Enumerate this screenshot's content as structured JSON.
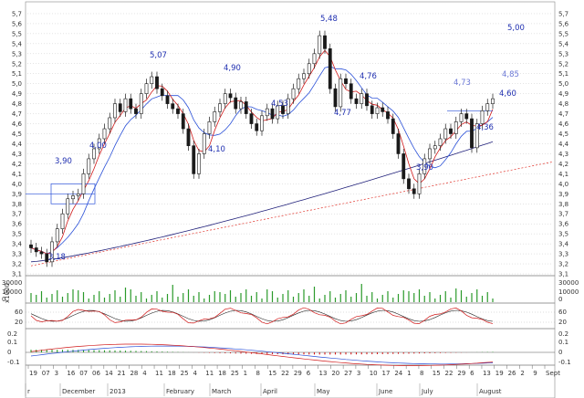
{
  "chart_data": [
    {
      "type": "candlestick",
      "title": "",
      "xlabel": "",
      "ylabel": "",
      "ylim": [
        3.1,
        5.8
      ],
      "y_ticks": [
        "3,1",
        "3,2",
        "3,3",
        "3,4",
        "3,5",
        "3,6",
        "3,7",
        "3,8",
        "3,9",
        "4,0",
        "4,1",
        "4,2",
        "4,3",
        "4,4",
        "4,5",
        "4,6",
        "4,7",
        "4,8",
        "4,9",
        "5,0",
        "5,1",
        "5,2",
        "5,3",
        "5,4",
        "5,5",
        "5,6",
        "5,7"
      ],
      "grid": "horizontal dotted",
      "x_day_labels": [
        "19",
        "07",
        "3",
        "16",
        "07",
        "06",
        "14",
        "21",
        "28",
        "4",
        "11",
        "18",
        "25",
        "4",
        "11",
        "18",
        "25",
        "1",
        "8",
        "15",
        "22",
        "29",
        "6",
        "13",
        "20",
        "27",
        "3",
        "10",
        "17",
        "24",
        "1",
        "8",
        "15",
        "22",
        "29",
        "6",
        "13",
        "19",
        "26",
        "2",
        "9",
        "Sept"
      ],
      "x_month_labels": [
        "r",
        "December",
        "2013",
        "February",
        "March",
        "April",
        "May",
        "June",
        "July",
        "August"
      ],
      "close_path": [
        3.36,
        3.32,
        3.3,
        3.22,
        3.42,
        3.55,
        3.7,
        3.85,
        3.88,
        3.9,
        4.1,
        4.25,
        4.35,
        4.45,
        4.55,
        4.66,
        4.8,
        4.72,
        4.85,
        4.75,
        4.7,
        4.9,
        5.0,
        5.07,
        4.95,
        4.88,
        4.8,
        4.75,
        4.7,
        4.55,
        4.38,
        4.1,
        4.3,
        4.5,
        4.62,
        4.72,
        4.8,
        4.9,
        4.86,
        4.75,
        4.82,
        4.7,
        4.6,
        4.53,
        4.68,
        4.75,
        4.65,
        4.78,
        4.7,
        4.85,
        4.95,
        5.05,
        5.1,
        5.2,
        5.3,
        5.48,
        5.35,
        4.95,
        4.77,
        5.05,
        5.0,
        4.85,
        4.8,
        4.9,
        4.78,
        4.7,
        4.76,
        4.72,
        4.65,
        4.5,
        4.3,
        4.05,
        3.95,
        3.9,
        4.1,
        4.25,
        4.35,
        4.38,
        4.45,
        4.55,
        4.5,
        4.62,
        4.7,
        4.65,
        4.36,
        4.6,
        4.73,
        4.8,
        4.85
      ],
      "levels": [
        {
          "label": "5,48",
          "value": 5.48
        },
        {
          "label": "5,07",
          "value": 5.07
        },
        {
          "label": "5,00",
          "value": 5.0
        },
        {
          "label": "4,90",
          "value": 4.9
        },
        {
          "label": "4,85",
          "value": 4.85
        },
        {
          "label": "4,77",
          "value": 4.77
        },
        {
          "label": "4,76",
          "value": 4.76
        },
        {
          "label": "4,73",
          "value": 4.73
        },
        {
          "label": "4,60",
          "value": 4.6
        },
        {
          "label": "4,53",
          "value": 4.53
        },
        {
          "label": "4,36",
          "value": 4.36
        },
        {
          "label": "4,10",
          "value": 4.1
        },
        {
          "label": "4,00",
          "value": 4.0
        },
        {
          "label": "3,90",
          "value": 3.9
        },
        {
          "label": "3,18",
          "value": 3.18
        }
      ],
      "overlays": [
        "short moving average (red)",
        "medium moving average (blue)",
        "long moving average (dark blue)",
        "dotted red trendline",
        "horizontal resistance lines (blue)"
      ],
      "colors": {
        "up": "#1a1a1a",
        "down": "#1a1a1a",
        "ma_short": "#d11a1a",
        "ma_mid": "#2a50d8",
        "ma_long": "#20207a",
        "trend": "#e0332a",
        "level": "#2a50d8",
        "annotation": "#1f2fb0"
      }
    },
    {
      "type": "bar",
      "name": "volume",
      "y_ticks": [
        "30000",
        "10000",
        "0"
      ],
      "axis_label": "x1000",
      "colors": {
        "bar": "#2a9a2a"
      }
    },
    {
      "type": "line",
      "name": "oscillator",
      "y_ticks": [
        "60",
        "20"
      ],
      "colors": {
        "line1": "#d11a1a",
        "line2": "#222222"
      }
    },
    {
      "type": "line",
      "name": "macd",
      "y_ticks": [
        "0.2",
        "0.1",
        "0",
        "-0.1"
      ],
      "colors": {
        "macd": "#d11a1a",
        "signal": "#2a50d8",
        "hist_up": "#2a9a2a",
        "hist_down": "#d11a1a"
      }
    }
  ]
}
